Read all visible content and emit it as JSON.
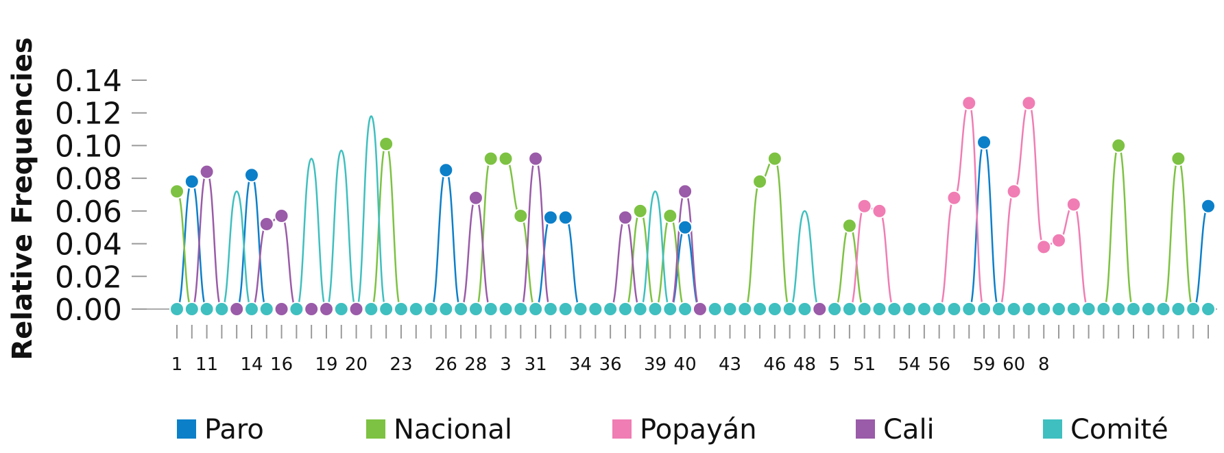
{
  "chart_data": {
    "type": "line",
    "ylabel": "Relative Frequencies",
    "xlabel": "",
    "ylim": [
      0,
      0.14
    ],
    "yticks": [
      "0.00",
      "0.02",
      "0.04",
      "0.06",
      "0.08",
      "0.10",
      "0.12",
      "0.14"
    ],
    "x_tick_labels": [
      "1",
      "",
      "11",
      "",
      "",
      "14",
      "",
      "16",
      "",
      "",
      "19",
      "",
      "20",
      "",
      "",
      "23",
      "",
      "",
      "26",
      "",
      "28",
      "",
      "3",
      "",
      "31",
      "",
      "",
      "34",
      "",
      "36",
      "",
      "",
      "39",
      "",
      "40",
      "",
      "",
      "43",
      "",
      "",
      "46",
      "",
      "48",
      "",
      "5",
      "",
      "51",
      "",
      "",
      "54",
      "",
      "56",
      "",
      "",
      "59",
      "",
      "60",
      "",
      "8",
      ""
    ],
    "series": [
      {
        "name": "Paro",
        "color": "#0c7fc9",
        "values": [
          0,
          0.078,
          0,
          0,
          0,
          0.082,
          0,
          0,
          0,
          0,
          0,
          0,
          0,
          0,
          0,
          0,
          0,
          0,
          0.085,
          0,
          0,
          0,
          0,
          0,
          0,
          0.056,
          0.056,
          0,
          0,
          0,
          0,
          0,
          0,
          0,
          0.05,
          0,
          0,
          0,
          0,
          0,
          0,
          0,
          0,
          0,
          0,
          0,
          0,
          0,
          0,
          0,
          0,
          0,
          0,
          0,
          0.102,
          0,
          0,
          0,
          0,
          0,
          0,
          0,
          0,
          0,
          0,
          0,
          0,
          0,
          0,
          0.063
        ]
      },
      {
        "name": "Nacional",
        "color": "#7dc242",
        "values": [
          0.072,
          0,
          0,
          0,
          0,
          0,
          0,
          0,
          0,
          0,
          0,
          0,
          0,
          0,
          0.101,
          0,
          0,
          0,
          0,
          0,
          0,
          0.092,
          0.092,
          0.057,
          0,
          0,
          0,
          0,
          0,
          0,
          0,
          0.06,
          0,
          0.057,
          0,
          0,
          0,
          0,
          0,
          0.078,
          0.092,
          0,
          0,
          0,
          0,
          0.051,
          0,
          0,
          0,
          0,
          0,
          0,
          0,
          0,
          0,
          0,
          0,
          0,
          0,
          0,
          0,
          0,
          0,
          0.1,
          0,
          0,
          0,
          0.092,
          0,
          0
        ]
      },
      {
        "name": "Popayán",
        "color": "#f07db3",
        "values": [
          0,
          0,
          0,
          0,
          0,
          0,
          0,
          0,
          0,
          0,
          0,
          0,
          0,
          0,
          0,
          0,
          0,
          0,
          0,
          0,
          0,
          0,
          0,
          0,
          0,
          0,
          0,
          0,
          0,
          0,
          0,
          0,
          0,
          0,
          0,
          0,
          0,
          0,
          0,
          0,
          0,
          0,
          0,
          0,
          0,
          0,
          0.063,
          0.06,
          0,
          0,
          0,
          0,
          0.068,
          0.126,
          0,
          0,
          0.072,
          0.126,
          0.038,
          0.042,
          0.064,
          0,
          0,
          0,
          0,
          0,
          0,
          0,
          0,
          0
        ]
      },
      {
        "name": "Cali",
        "color": "#9a5ba8",
        "values": [
          0,
          0,
          0.084,
          0,
          0,
          0,
          0.052,
          0.057,
          0,
          0,
          0,
          0,
          0,
          0,
          0,
          0,
          0,
          0,
          0,
          0,
          0.068,
          0,
          0,
          0,
          0.092,
          0,
          0,
          0,
          0,
          0,
          0.056,
          0,
          0,
          0,
          0.072,
          0,
          0,
          0,
          0,
          0,
          0,
          0,
          0,
          0,
          0,
          0,
          0,
          0,
          0,
          0,
          0,
          0,
          0,
          0,
          0,
          0,
          0,
          0,
          0,
          0,
          0,
          0,
          0,
          0,
          0,
          0,
          0,
          0,
          0,
          0
        ]
      },
      {
        "name": "Comité",
        "color": "#3fbfbf",
        "values": [
          0,
          0,
          0,
          0,
          0.072,
          0,
          0,
          0,
          0,
          0.092,
          0,
          0.097,
          0,
          0.118,
          0,
          0,
          0,
          0,
          0,
          0,
          0,
          0,
          0,
          0,
          0,
          0,
          0,
          0,
          0,
          0,
          0,
          0,
          0.072,
          0,
          0,
          0,
          0,
          0,
          0,
          0,
          0,
          0,
          0.06,
          0,
          0,
          0,
          0,
          0,
          0,
          0,
          0,
          0,
          0,
          0,
          0,
          0,
          0,
          0,
          0,
          0,
          0,
          0,
          0,
          0,
          0,
          0,
          0,
          0,
          0,
          0
        ]
      }
    ],
    "markers": [
      {
        "series": "Paro",
        "x": [
          1,
          53,
          54,
          71,
          72,
          85,
          98,
          130,
          252
        ]
      },
      {
        "series": "Nacional",
        "x": [
          0,
          64,
          89,
          90,
          94,
          103,
          108,
          122,
          125,
          165,
          191
        ]
      },
      {
        "series": "Popayán",
        "x": [
          158,
          159,
          224,
          225,
          232,
          233,
          234,
          235,
          236
        ]
      },
      {
        "series": "Cali",
        "x": [
          2,
          5,
          6,
          78,
          83,
          97,
          101
        ]
      },
      {
        "series": "Comité",
        "x": []
      }
    ],
    "legend": [
      "Paro",
      "Nacional",
      "Popayán",
      "Cali",
      "Comité"
    ],
    "legend_position": "bottom",
    "grid": false
  }
}
